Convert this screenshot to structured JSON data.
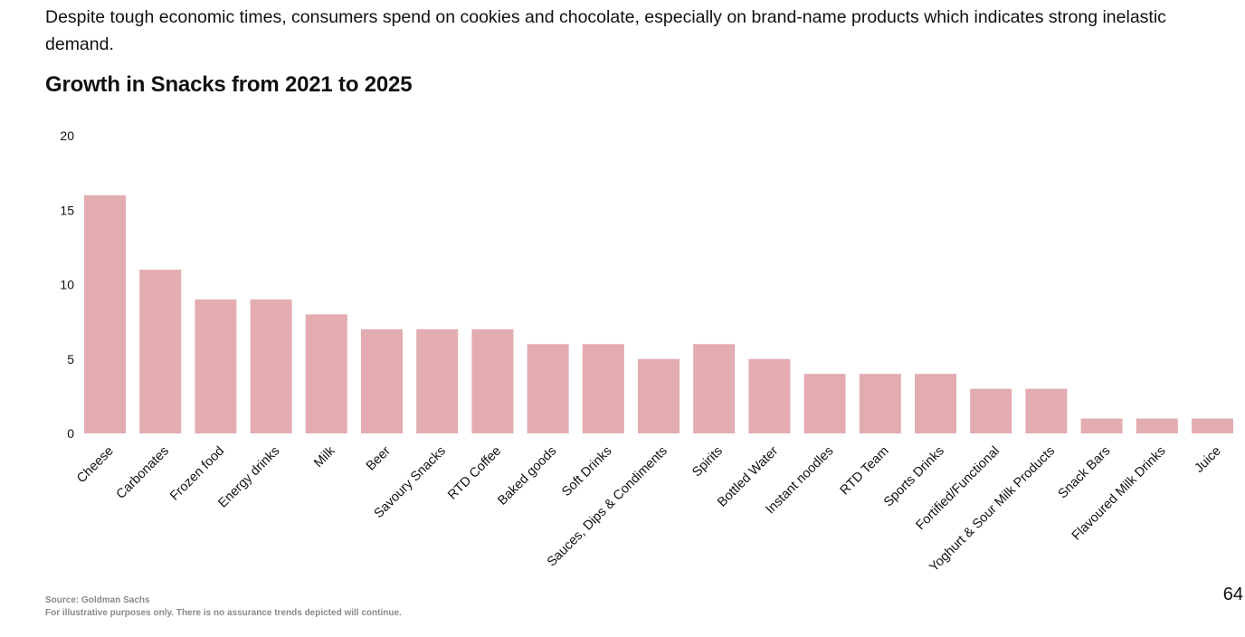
{
  "intro_text": "Despite tough economic times, consumers spend on cookies and chocolate, especially on brand-name products which indicates strong inelastic demand.",
  "source_line": "Source: Goldman Sachs",
  "disclaimer": "For illustrative purposes only. There is no assurance trends depicted will continue.",
  "page_number": "64",
  "colors": {
    "bar": "#e3acb1",
    "text": "#111111",
    "footnote": "#8a8a8a"
  },
  "chart_data": {
    "type": "bar",
    "title": "Growth in Snacks from 2021 to 2025",
    "xlabel": "",
    "ylabel": "",
    "ylim": [
      0,
      20
    ],
    "yticks": [
      0,
      5,
      10,
      15,
      20
    ],
    "grid": false,
    "legend": "none",
    "categories": [
      "Cheese",
      "Carbonates",
      "Frozen food",
      "Energy drinks",
      "Milk",
      "Beer",
      "Savoury Snacks",
      "RTD Coffee",
      "Baked goods",
      "Soft Drinks",
      "Sauces, Dips & Condiments",
      "Spirits",
      "Bottled Water",
      "Instant noodles",
      "RTD Team",
      "Sports Drinks",
      "Fortified/Functional",
      "Yoghurt & Sour Milk Products",
      "Snack Bars",
      "Flavoured Milk Drinks",
      "Juice"
    ],
    "values": [
      16,
      11,
      9,
      9,
      8,
      7,
      7,
      7,
      6,
      6,
      5,
      6,
      5,
      4,
      4,
      4,
      3,
      3,
      1,
      1,
      1
    ]
  }
}
